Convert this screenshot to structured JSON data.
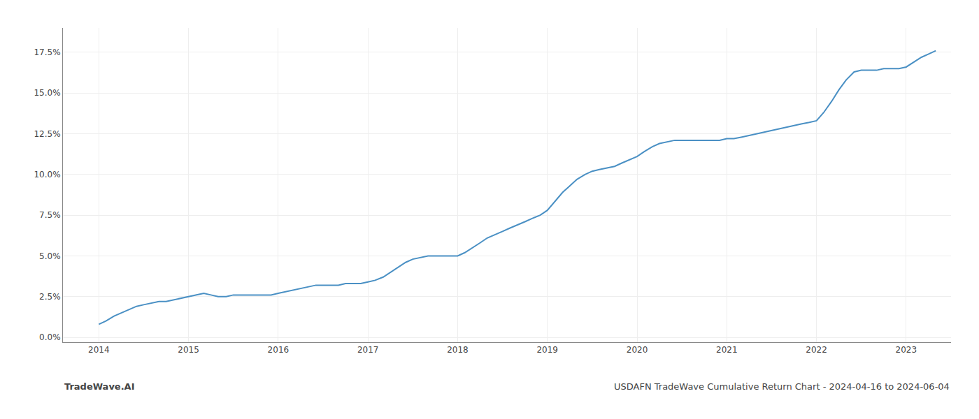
{
  "chart_data": {
    "type": "line",
    "title": "USDAFN TradeWave Cumulative Return Chart - 2024-04-16 to 2024-06-04",
    "annotations": [
      "TradeWave.AI"
    ],
    "color": "#4a90c4",
    "grid": true,
    "xlim": [
      2013.6,
      2023.5
    ],
    "xticks": [
      2014,
      2015,
      2016,
      2017,
      2018,
      2019,
      2020,
      2021,
      2022,
      2023
    ],
    "ylim": [
      -0.003,
      0.19
    ],
    "yticks": [
      {
        "value": 0.0,
        "label": "0.0%"
      },
      {
        "value": 0.025,
        "label": "2.5%"
      },
      {
        "value": 0.05,
        "label": "5.0%"
      },
      {
        "value": 0.075,
        "label": "7.5%"
      },
      {
        "value": 0.1,
        "label": "10.0%"
      },
      {
        "value": 0.125,
        "label": "12.5%"
      },
      {
        "value": 0.15,
        "label": "15.0%"
      },
      {
        "value": 0.175,
        "label": "17.5%"
      }
    ],
    "x": [
      2014.0,
      2014.08,
      2014.17,
      2014.25,
      2014.33,
      2014.42,
      2014.5,
      2014.58,
      2014.67,
      2014.75,
      2014.83,
      2014.92,
      2015.0,
      2015.08,
      2015.17,
      2015.25,
      2015.33,
      2015.42,
      2015.5,
      2015.58,
      2015.67,
      2015.75,
      2015.83,
      2015.92,
      2016.0,
      2016.08,
      2016.17,
      2016.25,
      2016.33,
      2016.42,
      2016.5,
      2016.58,
      2016.67,
      2016.75,
      2016.83,
      2016.92,
      2017.0,
      2017.08,
      2017.17,
      2017.25,
      2017.33,
      2017.42,
      2017.5,
      2017.58,
      2017.67,
      2017.75,
      2017.83,
      2017.92,
      2018.0,
      2018.08,
      2018.17,
      2018.25,
      2018.33,
      2018.42,
      2018.5,
      2018.58,
      2018.67,
      2018.75,
      2018.83,
      2018.92,
      2019.0,
      2019.08,
      2019.17,
      2019.25,
      2019.33,
      2019.42,
      2019.5,
      2019.58,
      2019.67,
      2019.75,
      2019.83,
      2019.92,
      2020.0,
      2020.08,
      2020.17,
      2020.25,
      2020.33,
      2020.42,
      2020.5,
      2020.58,
      2020.67,
      2020.75,
      2020.83,
      2020.92,
      2021.0,
      2021.08,
      2021.17,
      2021.25,
      2021.33,
      2021.42,
      2021.5,
      2021.58,
      2021.67,
      2021.75,
      2021.83,
      2021.92,
      2022.0,
      2022.08,
      2022.17,
      2022.25,
      2022.33,
      2022.42,
      2022.5,
      2022.58,
      2022.67,
      2022.75,
      2022.83,
      2022.92,
      2023.0,
      2023.08,
      2023.17,
      2023.25,
      2023.33
    ],
    "values": [
      0.008,
      0.01,
      0.013,
      0.015,
      0.017,
      0.019,
      0.02,
      0.021,
      0.022,
      0.022,
      0.023,
      0.024,
      0.025,
      0.026,
      0.027,
      0.026,
      0.025,
      0.025,
      0.026,
      0.026,
      0.026,
      0.026,
      0.026,
      0.026,
      0.027,
      0.028,
      0.029,
      0.03,
      0.031,
      0.032,
      0.032,
      0.032,
      0.032,
      0.033,
      0.033,
      0.033,
      0.034,
      0.035,
      0.037,
      0.04,
      0.043,
      0.046,
      0.048,
      0.049,
      0.05,
      0.05,
      0.05,
      0.05,
      0.05,
      0.052,
      0.055,
      0.058,
      0.061,
      0.063,
      0.065,
      0.067,
      0.069,
      0.071,
      0.073,
      0.075,
      0.078,
      0.083,
      0.089,
      0.093,
      0.097,
      0.1,
      0.102,
      0.103,
      0.104,
      0.105,
      0.107,
      0.109,
      0.111,
      0.114,
      0.117,
      0.119,
      0.12,
      0.121,
      0.121,
      0.121,
      0.121,
      0.121,
      0.121,
      0.121,
      0.122,
      0.122,
      0.123,
      0.124,
      0.125,
      0.126,
      0.127,
      0.128,
      0.129,
      0.13,
      0.131,
      0.132,
      0.133,
      0.138,
      0.145,
      0.152,
      0.158,
      0.163,
      0.164,
      0.164,
      0.164,
      0.165,
      0.165,
      0.165,
      0.166,
      0.169,
      0.172,
      0.174,
      0.176
    ]
  }
}
